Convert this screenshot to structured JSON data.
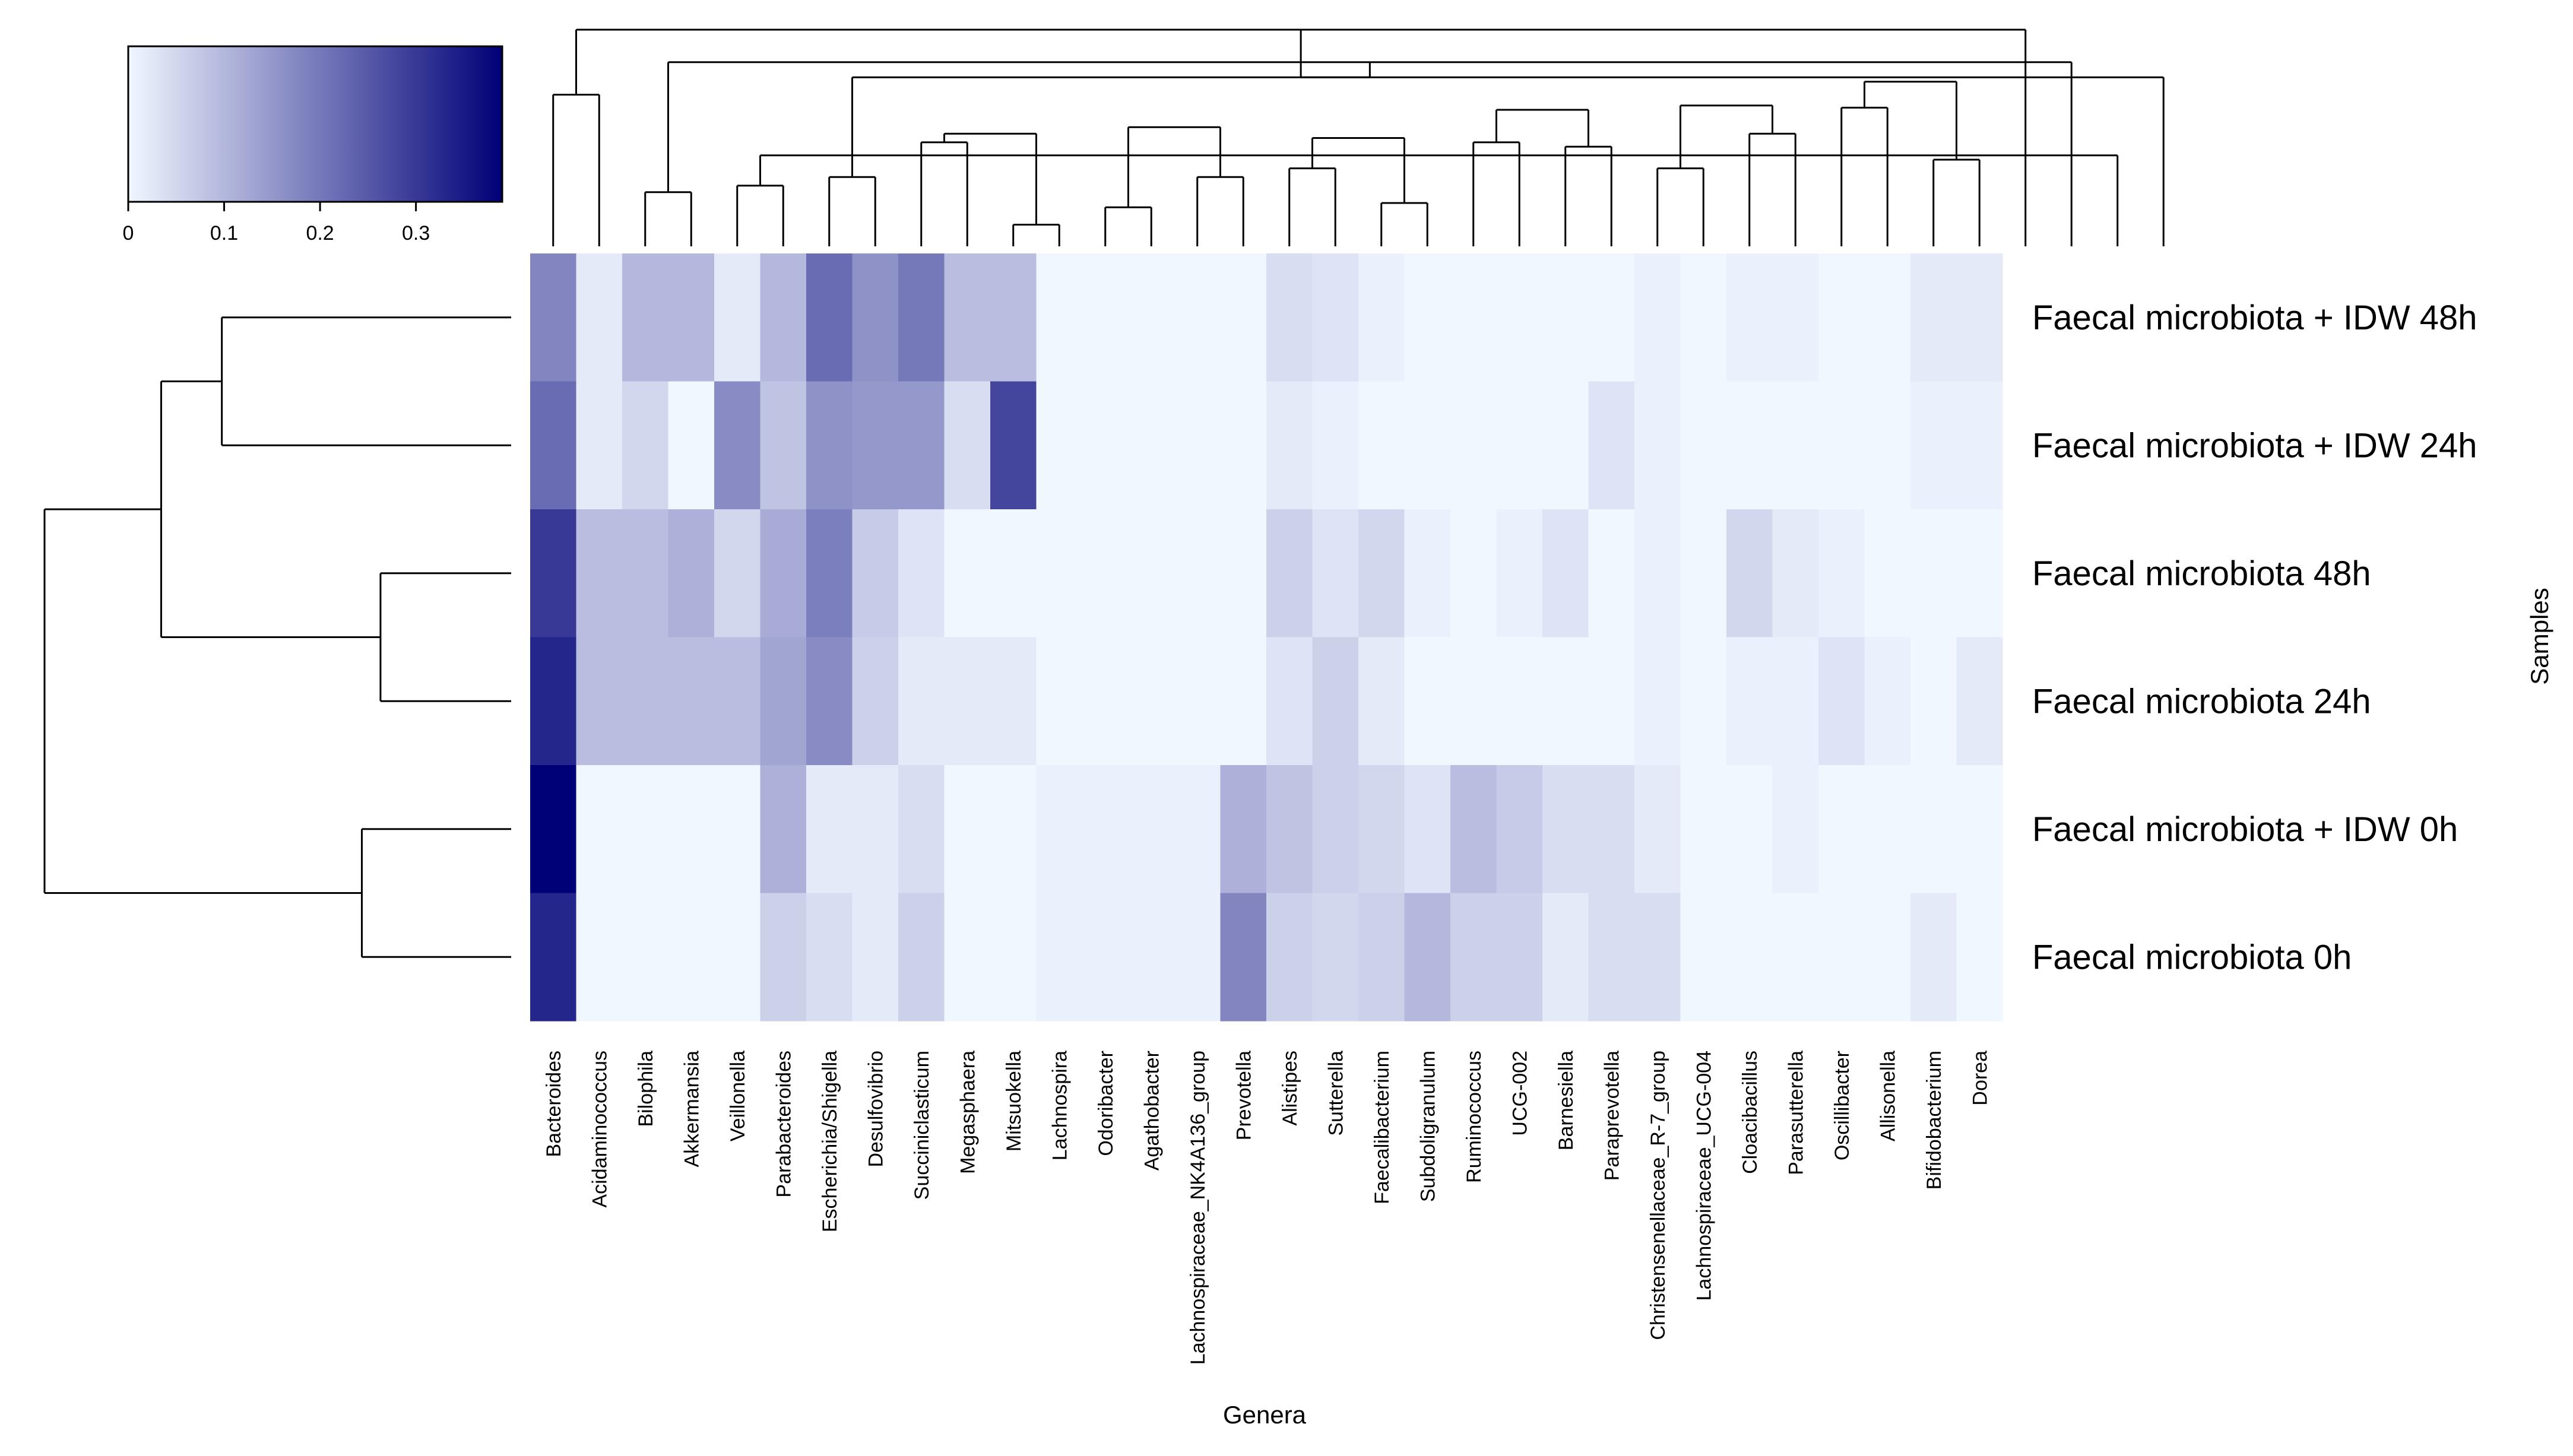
{
  "chart_data": {
    "type": "heatmap",
    "title": "",
    "xlabel": "Genera",
    "ylabel": "Samples",
    "colors": {
      "low": "#f1f7ff",
      "high": "#000077"
    },
    "color_key": {
      "min": 0,
      "max": 0.39,
      "ticks": [
        0,
        0.1,
        0.2,
        0.3
      ],
      "tick_labels": [
        "0",
        "0.1",
        "0.2",
        "0.3"
      ]
    },
    "columns": [
      "Bacteroides",
      "Acidaminococcus",
      "Bilophila",
      "Akkermansia",
      "Veillonella",
      "Parabacteroides",
      "Escherichia/Shigella",
      "Desulfovibrio",
      "Succiniclasticum",
      "Megasphaera",
      "Mitsuokella",
      "Lachnospira",
      "Odoribacter",
      "Agathobacter",
      "Lachnospiraceae_NK4A136_group",
      "Prevotella",
      "Alistipes",
      "Sutterella",
      "Faecalibacterium",
      "Subdoligranulum",
      "Ruminococcus",
      "UCG-002",
      "Barnesiella",
      "Paraprevotella",
      "Christensenellaceae_R-7_group",
      "Lachnospiraceae_UCG-004",
      "Cloacibacillus",
      "Parasutterella",
      "Oscillibacter",
      "Allisonella",
      "Bifidobacterium",
      "Dorea"
    ],
    "rows": [
      "Faecal microbiota + IDW 48h",
      "Faecal microbiota + IDW 24h",
      "Faecal microbiota 48h",
      "Faecal microbiota 24h",
      "Faecal microbiota + IDW 0h",
      "Faecal microbiota 0h"
    ],
    "values": [
      [
        0.18,
        0.02,
        0.1,
        0.1,
        0.02,
        0.1,
        0.22,
        0.16,
        0.2,
        0.09,
        0.09,
        0.0,
        0.0,
        0.0,
        0.0,
        0.0,
        0.04,
        0.03,
        0.01,
        0.0,
        0.0,
        0.0,
        0.0,
        0.0,
        0.01,
        0.0,
        0.01,
        0.01,
        0.0,
        0.0,
        0.02,
        0.02
      ],
      [
        0.22,
        0.02,
        0.05,
        0.0,
        0.17,
        0.08,
        0.16,
        0.15,
        0.15,
        0.04,
        0.28,
        0.0,
        0.0,
        0.0,
        0.0,
        0.0,
        0.02,
        0.01,
        0.0,
        0.0,
        0.0,
        0.0,
        0.0,
        0.03,
        0.01,
        0.0,
        0.0,
        0.0,
        0.0,
        0.0,
        0.01,
        0.01
      ],
      [
        0.3,
        0.09,
        0.09,
        0.11,
        0.05,
        0.12,
        0.19,
        0.07,
        0.03,
        0.0,
        0.0,
        0.0,
        0.0,
        0.0,
        0.0,
        0.0,
        0.06,
        0.03,
        0.05,
        0.01,
        0.0,
        0.01,
        0.03,
        0.0,
        0.01,
        0.0,
        0.05,
        0.02,
        0.01,
        0.0,
        0.0,
        0.0
      ],
      [
        0.33,
        0.09,
        0.09,
        0.09,
        0.09,
        0.13,
        0.17,
        0.06,
        0.02,
        0.02,
        0.02,
        0.0,
        0.0,
        0.0,
        0.0,
        0.0,
        0.03,
        0.06,
        0.02,
        0.0,
        0.0,
        0.0,
        0.0,
        0.0,
        0.01,
        0.0,
        0.01,
        0.01,
        0.03,
        0.01,
        0.0,
        0.02
      ],
      [
        0.39,
        0.0,
        0.0,
        0.0,
        0.0,
        0.11,
        0.02,
        0.02,
        0.04,
        0.0,
        0.0,
        0.01,
        0.01,
        0.01,
        0.01,
        0.11,
        0.08,
        0.06,
        0.05,
        0.03,
        0.09,
        0.07,
        0.04,
        0.04,
        0.02,
        0.0,
        0.0,
        0.01,
        0.0,
        0.0,
        0.0,
        0.0
      ],
      [
        0.33,
        0.0,
        0.0,
        0.0,
        0.0,
        0.06,
        0.04,
        0.02,
        0.06,
        0.0,
        0.0,
        0.01,
        0.01,
        0.01,
        0.01,
        0.18,
        0.06,
        0.05,
        0.06,
        0.1,
        0.06,
        0.06,
        0.02,
        0.04,
        0.04,
        0.0,
        0.0,
        0.0,
        0.0,
        0.0,
        0.02,
        0.0
      ]
    ],
    "column_dendrogram": [
      {
        "l": [
          -1,
          0
        ],
        "r": [
          -1,
          1
        ],
        "h": 0.7
      },
      {
        "l": [
          -1,
          2
        ],
        "r": [
          -1,
          3
        ],
        "h": 0.25
      },
      {
        "l": [
          -1,
          4
        ],
        "r": [
          -1,
          5
        ],
        "h": 0.28
      },
      {
        "l": [
          -1,
          6
        ],
        "r": [
          -1,
          7
        ],
        "h": 0.32
      },
      {
        "l": [
          -1,
          8
        ],
        "r": [
          -1,
          9
        ],
        "h": 0.48
      },
      {
        "l": [
          -1,
          10
        ],
        "r": [
          -1,
          11
        ],
        "h": 0.1
      },
      {
        "l": [
          -1,
          12
        ],
        "r": [
          -1,
          13
        ],
        "h": 0.18
      },
      {
        "l": [
          -1,
          14
        ],
        "r": [
          -1,
          15
        ],
        "h": 0.32
      },
      {
        "l": [
          -1,
          16
        ],
        "r": [
          -1,
          17
        ],
        "h": 0.36
      },
      {
        "l": [
          -1,
          18
        ],
        "r": [
          -1,
          19
        ],
        "h": 0.2
      },
      {
        "l": [
          -1,
          20
        ],
        "r": [
          -1,
          21
        ],
        "h": 0.48
      },
      {
        "l": [
          -1,
          22
        ],
        "r": [
          -1,
          23
        ],
        "h": 0.46
      },
      {
        "l": [
          -1,
          24
        ],
        "r": [
          -1,
          25
        ],
        "h": 0.36
      },
      {
        "l": [
          -1,
          26
        ],
        "r": [
          -1,
          27
        ],
        "h": 0.52
      },
      {
        "l": [
          -1,
          28
        ],
        "r": [
          -1,
          29
        ],
        "h": 0.64
      },
      {
        "l": [
          -1,
          30
        ],
        "r": [
          -1,
          31
        ],
        "h": 0.4
      },
      {
        "l": [
          -2,
          0
        ],
        "r": [
          -1,
          32
        ],
        "h": 1.0
      },
      {
        "l": [
          -2,
          1
        ],
        "r": [
          -1,
          33
        ],
        "h": 0.85
      },
      {
        "l": [
          -2,
          2
        ],
        "r": [
          -1,
          34
        ],
        "h": 0.42
      },
      {
        "l": [
          -2,
          3
        ],
        "r": [
          -1,
          35
        ],
        "h": 0.78
      },
      {
        "l": [
          -2,
          4
        ],
        "r": [
          -2,
          5
        ],
        "h": 0.52
      },
      {
        "l": [
          -2,
          6
        ],
        "r": [
          -2,
          7
        ],
        "h": 0.55
      },
      {
        "l": [
          -2,
          8
        ],
        "r": [
          -2,
          9
        ],
        "h": 0.5
      },
      {
        "l": [
          -2,
          10
        ],
        "r": [
          -2,
          11
        ],
        "h": 0.63
      },
      {
        "l": [
          -2,
          12
        ],
        "r": [
          -2,
          13
        ],
        "h": 0.65
      },
      {
        "l": [
          -2,
          14
        ],
        "r": [
          -2,
          15
        ],
        "h": 0.76
      },
      {
        "l": [
          -2,
          16
        ],
        "r": [
          -2,
          17
        ],
        "h": 0.78
      }
    ],
    "row_dendrogram": [
      {
        "l": [
          -1,
          0
        ],
        "r": [
          -1,
          1
        ],
        "h": 0.62
      },
      {
        "l": [
          -1,
          2
        ],
        "r": [
          -1,
          3
        ],
        "h": 0.28
      },
      {
        "l": [
          -1,
          4
        ],
        "r": [
          -1,
          5
        ],
        "h": 0.32
      },
      {
        "l": [
          -2,
          0
        ],
        "r": [
          -2,
          1
        ],
        "h": 0.75
      },
      {
        "l": [
          -2,
          2
        ],
        "r": [
          -2,
          3
        ],
        "h": 1.0
      }
    ]
  }
}
